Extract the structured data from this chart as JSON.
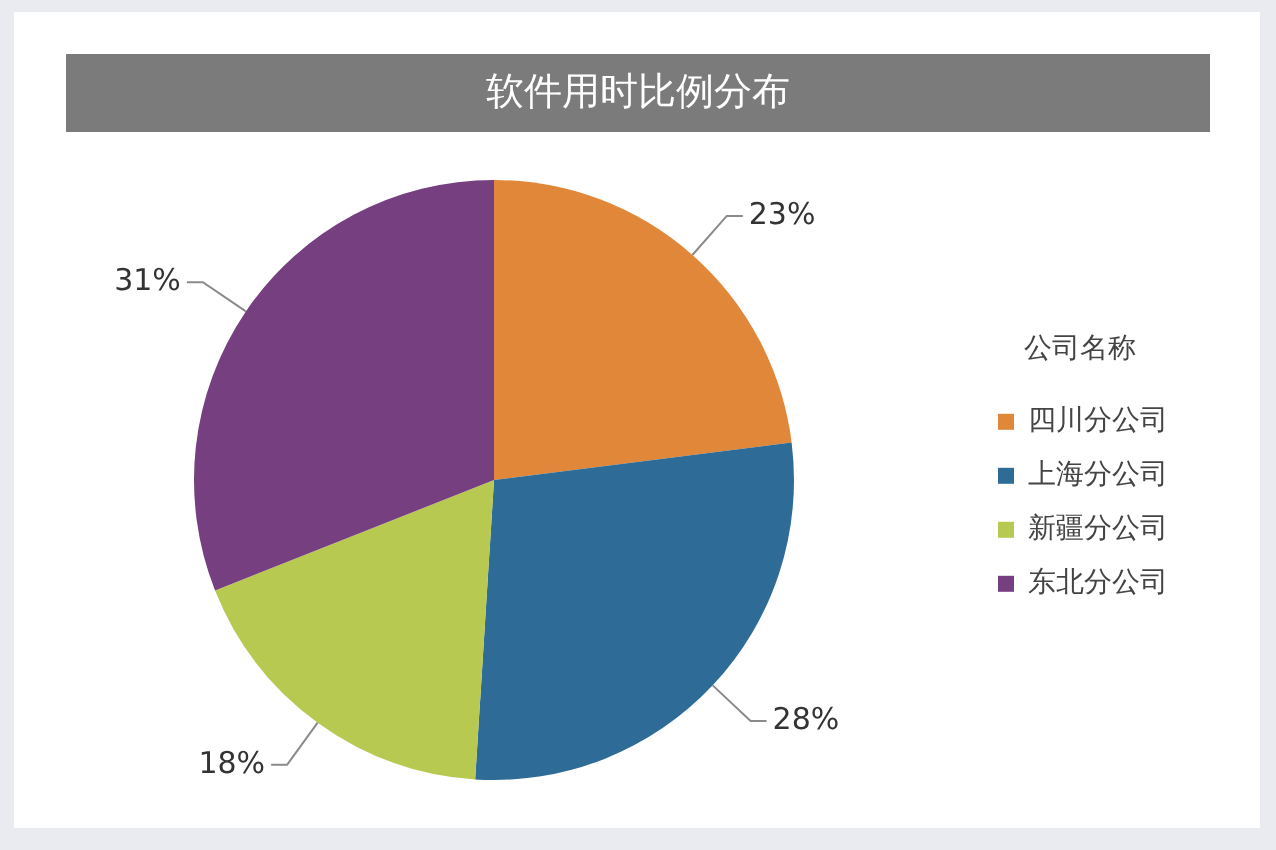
{
  "chart_data": {
    "type": "pie",
    "title": "软件用时比例分布",
    "legend_title": "公司名称",
    "legend": "right",
    "categories": [
      "四川分公司",
      "上海分公司",
      "新疆分公司",
      "东北分公司"
    ],
    "values": [
      23,
      28,
      18,
      31
    ],
    "colors": [
      "#e0873a",
      "#2e6b96",
      "#b8c952",
      "#763f80"
    ],
    "value_labels": [
      "23%",
      "28%",
      "18%",
      "31%"
    ]
  }
}
